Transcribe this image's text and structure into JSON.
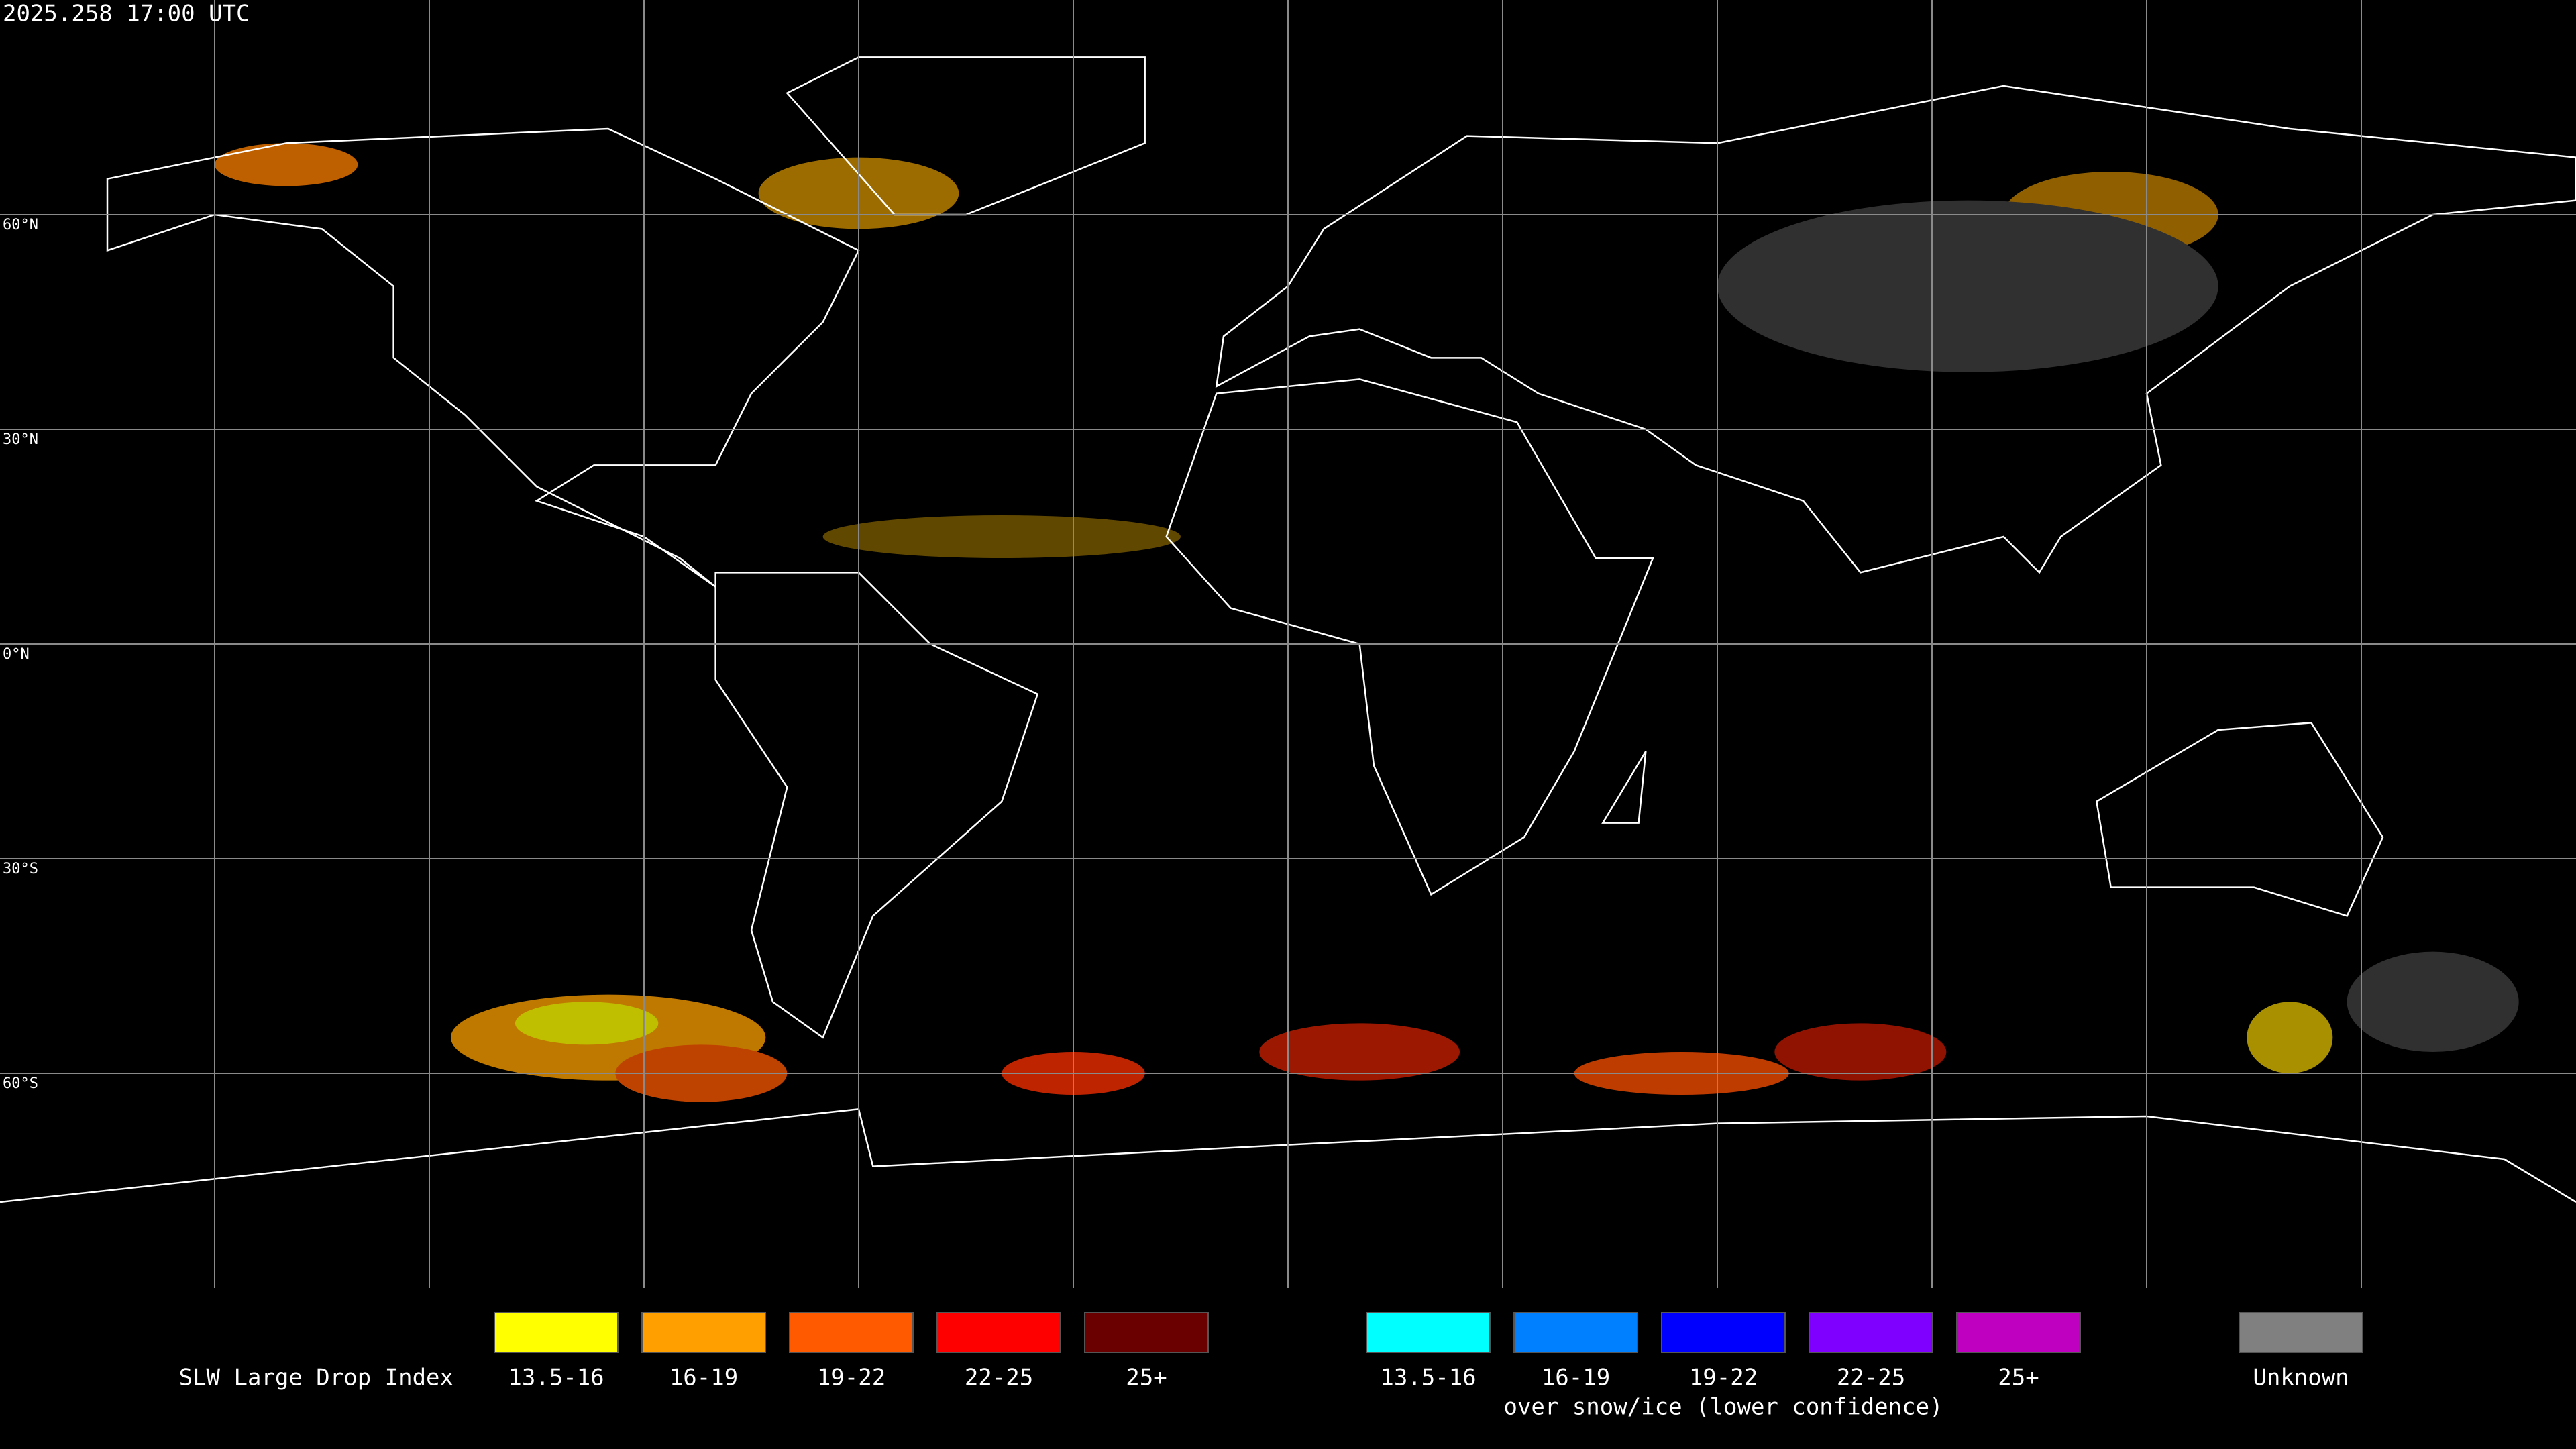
{
  "header": {
    "timestamp": "2025.258 17:00 UTC"
  },
  "map": {
    "latitude_labels": [
      "60°N",
      "30°N",
      "0°N",
      "30°S",
      "60°S"
    ]
  },
  "legend": {
    "title": "SLW Large Drop Index",
    "groups": [
      {
        "items": [
          {
            "label": "13.5-16",
            "color": "#ffff00"
          },
          {
            "label": "16-19",
            "color": "#ffa000"
          },
          {
            "label": "19-22",
            "color": "#ff5a00"
          },
          {
            "label": "22-25",
            "color": "#ff0000"
          },
          {
            "label": "25+",
            "color": "#6a0000"
          }
        ]
      },
      {
        "items": [
          {
            "label": "13.5-16",
            "color": "#00ffff"
          },
          {
            "label": "16-19",
            "color": "#0080ff"
          },
          {
            "label": "19-22",
            "color": "#0000ff"
          },
          {
            "label": "22-25",
            "color": "#8000ff"
          },
          {
            "label": "25+",
            "color": "#c000c0"
          }
        ],
        "caption": "over snow/ice (lower confidence)"
      },
      {
        "items": [
          {
            "label": "Unknown",
            "color": "#808080"
          }
        ]
      }
    ]
  }
}
